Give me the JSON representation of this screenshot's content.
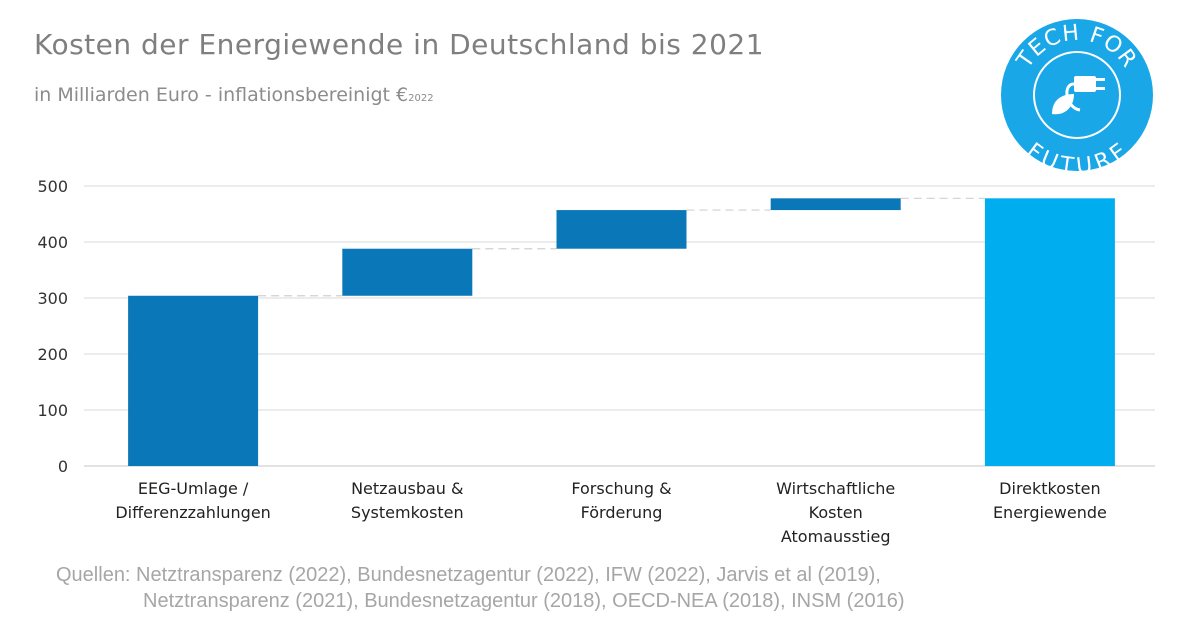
{
  "header": {
    "title": "Kosten der Energiewende in Deutschland bis 2021",
    "subtitle": "in Milliarden Euro - inflationsbereinigt €",
    "subtitle_sub": "2022"
  },
  "logo": {
    "text_top": "TECH FOR",
    "text_bottom": "FUTURE",
    "icon": "plug-leaf-icon",
    "color": "#1aa7e8"
  },
  "sources": {
    "line1": "Quellen: Netztransparenz (2022), Bundesnetzagentur (2022), IFW (2022), Jarvis et al (2019),",
    "line2": "Netztransparenz (2021), Bundesnetzagentur (2018), OECD-NEA (2018), INSM (2016)"
  },
  "chart_data": {
    "type": "waterfall",
    "categories": [
      [
        "EEG-Umlage /",
        "Differenzzahlungen"
      ],
      [
        "Netzausbau &",
        "Systemkosten"
      ],
      [
        "Forschung &",
        "Förderung"
      ],
      [
        "Wirtschaftliche",
        "Kosten",
        "Atomausstieg"
      ],
      [
        "Direktkosten",
        "Energiewende"
      ]
    ],
    "bars": [
      {
        "start": 0,
        "end": 304
      },
      {
        "start": 304,
        "end": 388
      },
      {
        "start": 388,
        "end": 457
      },
      {
        "start": 457,
        "end": 478
      },
      {
        "start": 0,
        "end": 478,
        "total": true
      }
    ],
    "ylim": [
      0,
      500
    ],
    "yticks": [
      0,
      100,
      200,
      300,
      400,
      500
    ],
    "grid": true,
    "colors": {
      "step": "#0a78b8",
      "total": "#00adef",
      "grid": "#d9d9d9",
      "connector": "#d0d0d0"
    }
  }
}
